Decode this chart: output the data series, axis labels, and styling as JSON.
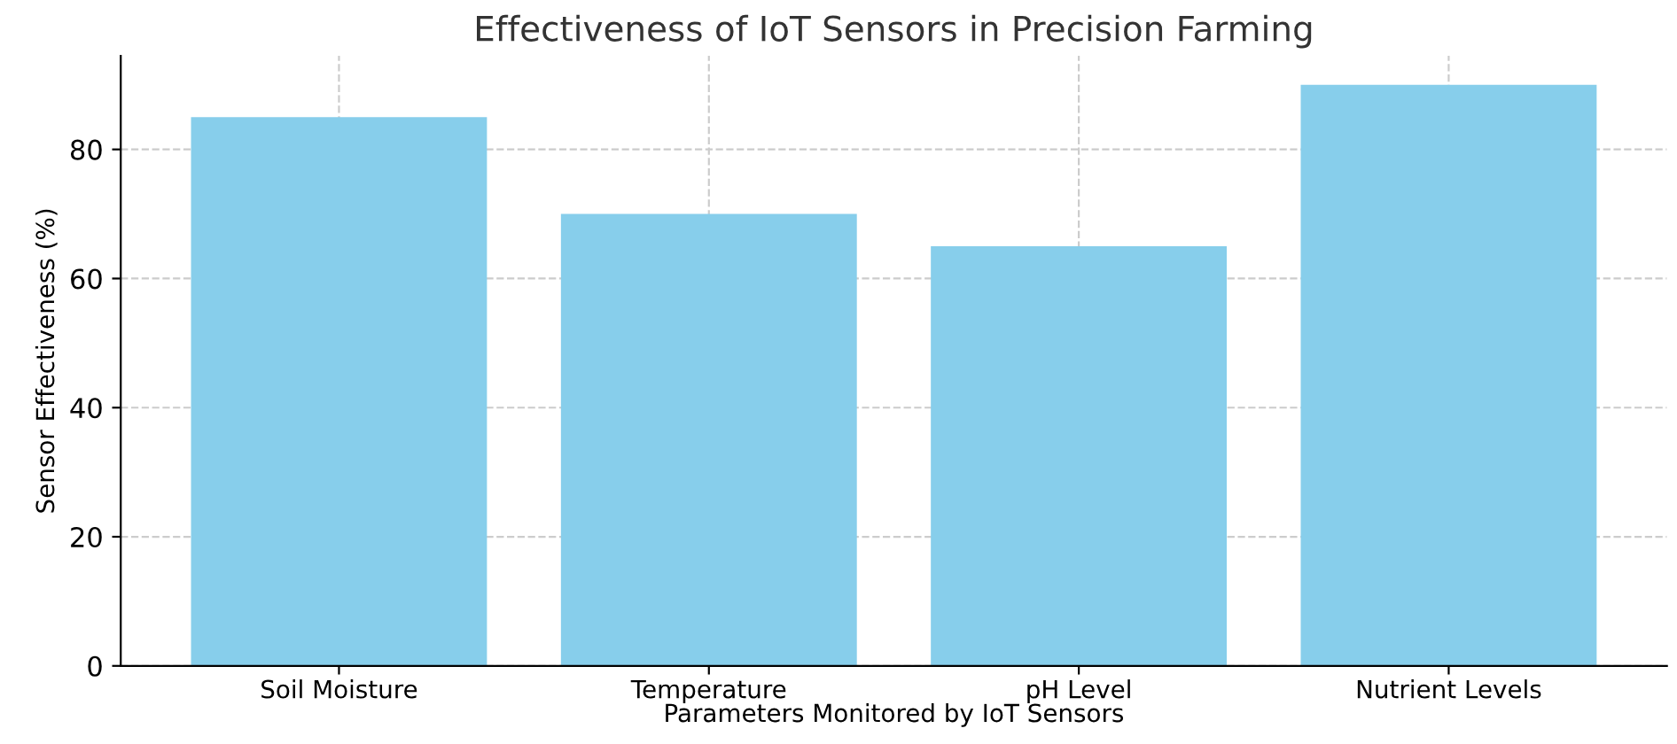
{
  "chart_data": {
    "type": "bar",
    "title": "Effectiveness of IoT Sensors in Precision Farming",
    "xlabel": "Parameters Monitored by IoT Sensors",
    "ylabel": "Sensor Effectiveness (%)",
    "categories": [
      "Soil Moisture",
      "Temperature",
      "pH Level",
      "Nutrient Levels"
    ],
    "values": [
      85,
      70,
      65,
      90
    ],
    "color": "#87ceeb",
    "ylim": [
      0,
      94.5
    ],
    "yticks": [
      0,
      20,
      40,
      60,
      80
    ],
    "grid": true
  }
}
